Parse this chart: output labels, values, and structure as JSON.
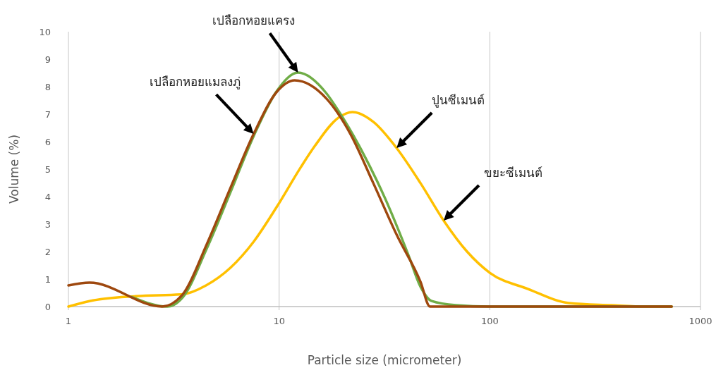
{
  "chart_data": {
    "type": "line",
    "xlabel": "Particle size (micrometer)",
    "ylabel": "Volume (%)",
    "log": "x",
    "xlim": [
      1,
      1000
    ],
    "xticks": [
      1,
      10,
      100,
      1000
    ],
    "ylim": [
      0,
      10
    ],
    "yticks": [
      0,
      1,
      2,
      3,
      4,
      5,
      6,
      7,
      8,
      9,
      10
    ],
    "grid": "x",
    "line_style": "solid",
    "series": [
      {
        "color": "#ffc000",
        "x": [
          1,
          1.26,
          2.09,
          3.5,
          4.5,
          5.87,
          7.57,
          9.77,
          12.7,
          14.8,
          19.1,
          22.3,
          28,
          36.1,
          46.9,
          60.4,
          78,
          100,
          152,
          237,
          377,
          550,
          730
        ],
        "values": [
          0,
          0.2,
          0.38,
          0.45,
          0.77,
          1.41,
          2.36,
          3.64,
          5.08,
          5.85,
          6.87,
          7.08,
          6.72,
          5.77,
          4.49,
          3.13,
          2,
          1.23,
          0.64,
          0.13,
          0.05,
          0,
          0
        ]
      },
      {
        "color": "#70ad47",
        "x": [
          2,
          2.94,
          3.5,
          4.53,
          5.87,
          7.57,
          9.77,
          12.3,
          16.8,
          19.1,
          24.6,
          32,
          41.2,
          46.9,
          53,
          69,
          100,
          730
        ],
        "values": [
          0.35,
          0,
          0.35,
          2.1,
          4.15,
          6.2,
          7.85,
          8.51,
          7.75,
          7.13,
          5.69,
          3.9,
          1.85,
          0.72,
          0.2,
          0.05,
          0,
          0
        ]
      },
      {
        "color": "#9e480e",
        "x": [
          1,
          1.26,
          2.78,
          3.5,
          4.53,
          5.87,
          7.57,
          9.77,
          11.85,
          16.8,
          21.8,
          28,
          36.1,
          46.9,
          52,
          100,
          730
        ],
        "values": [
          0.77,
          0.87,
          0,
          0.46,
          2.26,
          4.31,
          6.28,
          7.82,
          8.23,
          7.56,
          6.28,
          4.49,
          2.62,
          0.9,
          0,
          0,
          0
        ]
      }
    ],
    "annotations": [
      "เปลือกหอยแครง",
      "เปลือกหอยแมลงภู่",
      "ปูนซีเมนต์",
      "ขยะซีเมนต์"
    ]
  }
}
